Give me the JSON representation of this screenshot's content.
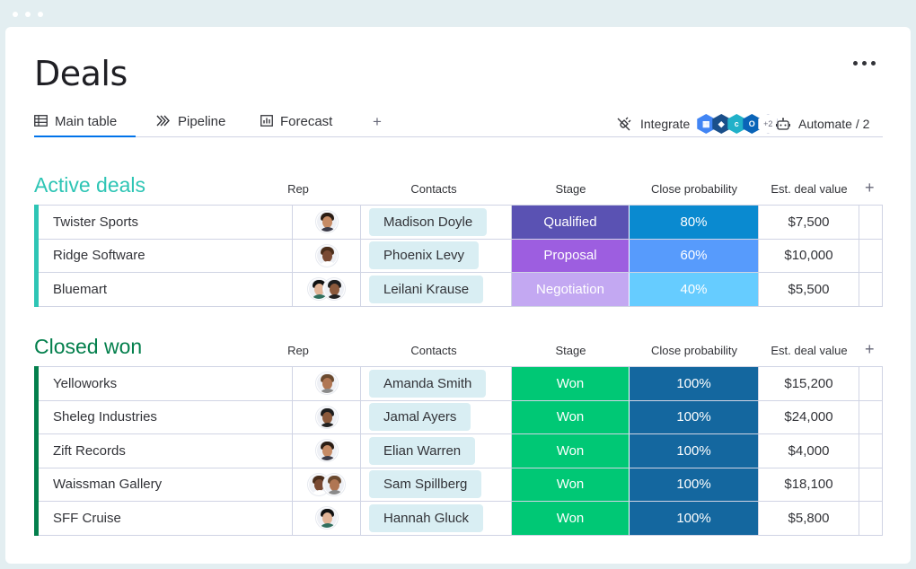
{
  "window": {
    "title": "Deals"
  },
  "tabs": [
    {
      "label": "Main table",
      "icon": "table-icon",
      "active": true
    },
    {
      "label": "Pipeline",
      "icon": "pipeline-icon",
      "active": false
    },
    {
      "label": "Forecast",
      "icon": "chart-icon",
      "active": false
    },
    {
      "label": "+",
      "icon": "plus-icon",
      "active": false
    }
  ],
  "toolbar": {
    "integrate_label": "Integrate",
    "integrations_more": "+2",
    "automate_label": "Automate / 2"
  },
  "columns": {
    "rep": "Rep",
    "contacts": "Contacts",
    "stage": "Stage",
    "probability": "Close probability",
    "value": "Est. deal value",
    "add": "+"
  },
  "groups": [
    {
      "title": "Active deals",
      "color": "#2ec5b5",
      "rows": [
        {
          "name": "Twister Sports",
          "contact": "Madison Doyle",
          "stage": "Qualified",
          "stage_color": "#5a52b3",
          "probability": "80%",
          "prob_color": "#0a8ad0",
          "value": "$7,500",
          "rep_avatars": 1
        },
        {
          "name": "Ridge Software",
          "contact": "Phoenix Levy",
          "stage": "Proposal",
          "stage_color": "#9d5ee0",
          "probability": "60%",
          "prob_color": "#579bfc",
          "value": "$10,000",
          "rep_avatars": 1
        },
        {
          "name": "Bluemart",
          "contact": "Leilani Krause",
          "stage": "Negotiation",
          "stage_color": "#c3a8f2",
          "probability": "40%",
          "prob_color": "#66ccff",
          "value": "$5,500",
          "rep_avatars": 2
        }
      ]
    },
    {
      "title": "Closed won",
      "color": "#037f4c",
      "rows": [
        {
          "name": "Yelloworks",
          "contact": "Amanda Smith",
          "stage": "Won",
          "stage_color": "#00c875",
          "probability": "100%",
          "prob_color": "#14679f",
          "value": "$15,200",
          "rep_avatars": 1
        },
        {
          "name": "Sheleg Industries",
          "contact": "Jamal Ayers",
          "stage": "Won",
          "stage_color": "#00c875",
          "probability": "100%",
          "prob_color": "#14679f",
          "value": "$24,000",
          "rep_avatars": 1
        },
        {
          "name": "Zift Records",
          "contact": "Elian Warren",
          "stage": "Won",
          "stage_color": "#00c875",
          "probability": "100%",
          "prob_color": "#14679f",
          "value": "$4,000",
          "rep_avatars": 1
        },
        {
          "name": "Waissman Gallery",
          "contact": "Sam Spillberg",
          "stage": "Won",
          "stage_color": "#00c875",
          "probability": "100%",
          "prob_color": "#14679f",
          "value": "$18,100",
          "rep_avatars": 2
        },
        {
          "name": "SFF Cruise",
          "contact": "Hannah Gluck",
          "stage": "Won",
          "stage_color": "#00c875",
          "probability": "100%",
          "prob_color": "#14679f",
          "value": "$5,800",
          "rep_avatars": 1
        }
      ]
    }
  ]
}
